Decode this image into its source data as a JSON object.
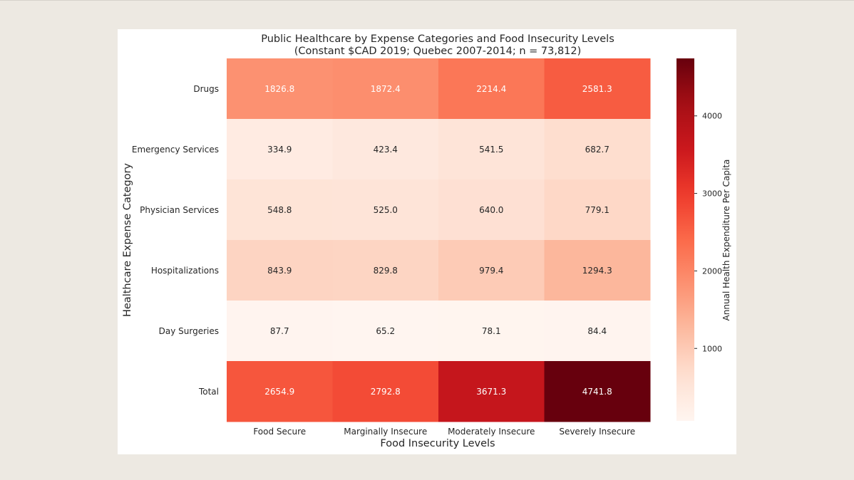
{
  "chart_data": {
    "type": "heatmap",
    "title": "Public Healthcare by Expense Categories and Food Insecurity Levels",
    "subtitle": "(Constant $CAD 2019; Quebec 2007-2014; n = 73,812)",
    "xlabel": "Food Insecurity Levels",
    "ylabel": "Healthcare Expense Category",
    "x_categories": [
      "Food Secure",
      "Marginally Insecure",
      "Moderately Insecure",
      "Severely Insecure"
    ],
    "y_categories": [
      "Drugs",
      "Emergency Services",
      "Physician Services",
      "Hospitalizations",
      "Day Surgeries",
      "Total"
    ],
    "values": [
      [
        1826.8,
        1872.4,
        2214.4,
        2581.3
      ],
      [
        334.9,
        423.4,
        541.5,
        682.7
      ],
      [
        548.8,
        525.0,
        640.0,
        779.1
      ],
      [
        843.9,
        829.8,
        979.4,
        1294.3
      ],
      [
        87.7,
        65.2,
        78.1,
        84.4
      ],
      [
        2654.9,
        2792.8,
        3671.3,
        4741.8
      ]
    ],
    "colorbar": {
      "label": "Annual Health Expenditure Per Capita",
      "ticks": [
        1000,
        2000,
        3000,
        4000
      ],
      "range": [
        65.2,
        4741.8
      ],
      "colormap": "Reds"
    }
  }
}
